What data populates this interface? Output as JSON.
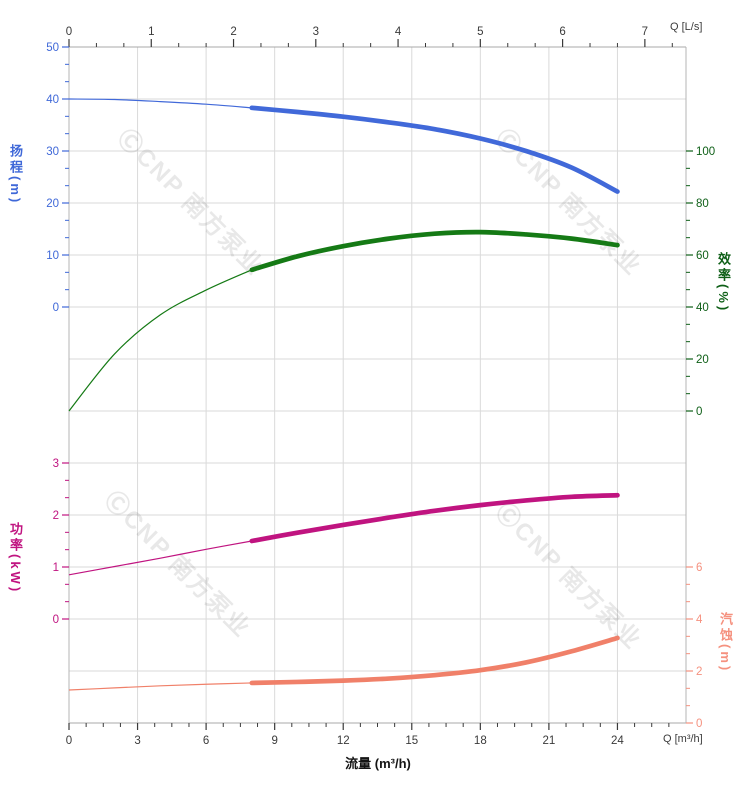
{
  "page": {
    "background": "#ffffff"
  },
  "watermark": {
    "text": "ⒸCNP 南方泵业",
    "color": "#000000",
    "opacity": 0.09
  },
  "chart_data": {
    "type": "line",
    "description": "Pump performance curves: head, efficiency, power and NPSH versus flow",
    "x_unit": "m³/h",
    "x": [
      0,
      2,
      4,
      6,
      8,
      10,
      12,
      14,
      16,
      18,
      20,
      22,
      24
    ],
    "x_axis_bottom": {
      "label": "流量 (m³/h)",
      "unit_label": "Q [m³/h]",
      "tick_labels": [
        0,
        3,
        6,
        9,
        12,
        15,
        18,
        21,
        24
      ],
      "range": [
        0,
        27
      ],
      "minor_step": 0.75
    },
    "x_axis_top": {
      "unit_label": "Q [L/s]",
      "tick_labels": [
        0,
        1,
        2,
        3,
        4,
        5,
        6,
        7
      ],
      "range": [
        0,
        7.5
      ],
      "m3h_per_unit": 3.6,
      "minor_step": 0.3333
    },
    "y_axes": {
      "head": {
        "title": "扬程(m)",
        "color": "#3f68d8",
        "tick_labels": [
          50,
          40,
          30,
          20,
          10,
          0
        ],
        "max": 50,
        "min": 0,
        "grid_top_row": 0,
        "grid_bottom_row": 5,
        "side": "left"
      },
      "eff": {
        "title": "效率(%)",
        "color": "#0e5f17",
        "tick_labels": [
          100,
          80,
          60,
          40,
          20,
          0
        ],
        "max": 100,
        "min": 0,
        "grid_top_row": 2,
        "grid_bottom_row": 7,
        "side": "right"
      },
      "power": {
        "title": "功率(kW)",
        "color": "#c01480",
        "tick_labels": [
          3,
          2,
          1,
          0
        ],
        "max": 3,
        "min": 0,
        "grid_top_row": 8,
        "grid_bottom_row": 11,
        "side": "left"
      },
      "npsh": {
        "title": "汽蚀(m)",
        "color": "#f5917f",
        "tick_labels": [
          6,
          4,
          2,
          0
        ],
        "max": 6,
        "min": 0,
        "grid_top_row": 10,
        "grid_bottom_row": 13,
        "side": "right"
      }
    },
    "series": [
      {
        "name": "head",
        "axis": "head",
        "color": "#4169d9",
        "values": [
          40,
          39.9,
          39.5,
          39.0,
          38.3,
          37.5,
          36.6,
          35.5,
          34.2,
          32.4,
          30.0,
          26.8,
          22.2
        ]
      },
      {
        "name": "efficiency",
        "axis": "eff",
        "color": "#157a15",
        "values": [
          0,
          22,
          37,
          46.5,
          54.3,
          59.5,
          63.4,
          66.3,
          68.2,
          68.8,
          67.9,
          66.3,
          63.8
        ]
      },
      {
        "name": "power",
        "axis": "power",
        "color": "#c01480",
        "values": [
          0.85,
          1.01,
          1.17,
          1.34,
          1.5,
          1.66,
          1.81,
          1.95,
          2.08,
          2.19,
          2.28,
          2.35,
          2.38
        ]
      },
      {
        "name": "npsh",
        "axis": "npsh",
        "color": "#f08069",
        "values": [
          1.27,
          1.35,
          1.43,
          1.49,
          1.54,
          1.58,
          1.63,
          1.71,
          1.84,
          2.03,
          2.33,
          2.76,
          3.27
        ]
      }
    ],
    "emphasis_range": [
      8,
      24
    ],
    "grid": {
      "rows": 13,
      "on": true,
      "color": "#dadada"
    },
    "legend": {
      "visible": false
    }
  }
}
